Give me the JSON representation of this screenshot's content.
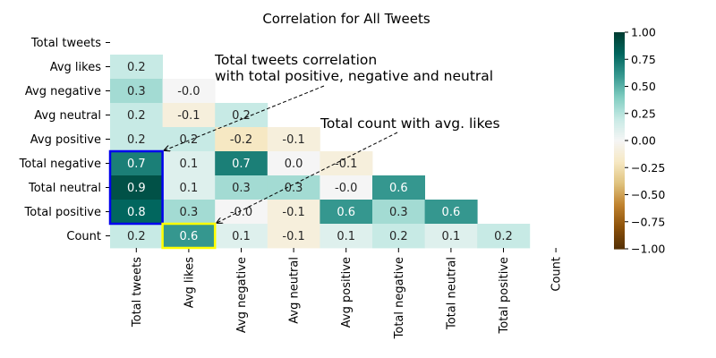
{
  "chart_data": {
    "type": "heatmap",
    "title": "Correlation for All Tweets",
    "labels": [
      "Total tweets",
      "Avg likes",
      "Avg negative",
      "Avg neutral",
      "Avg positive",
      "Total negative",
      "Total neutral",
      "Total positive",
      "Count"
    ],
    "matrix": [
      [],
      [
        0.2
      ],
      [
        0.3,
        -0.0
      ],
      [
        0.2,
        -0.1,
        0.2
      ],
      [
        0.2,
        0.2,
        -0.2,
        -0.1
      ],
      [
        0.7,
        0.1,
        0.7,
        0.0,
        -0.1
      ],
      [
        0.9,
        0.1,
        0.3,
        0.3,
        -0.0,
        0.6
      ],
      [
        0.8,
        0.3,
        -0.0,
        -0.1,
        0.6,
        0.3,
        0.6
      ],
      [
        0.2,
        0.6,
        0.1,
        -0.1,
        0.1,
        0.2,
        0.1,
        0.2
      ]
    ],
    "mask": "upper-triangle-including-diagonal",
    "colormap": "BrBG",
    "vmin": -1.0,
    "vmax": 1.0,
    "colorbar_ticks": [
      "1.00",
      "0.75",
      "0.50",
      "0.25",
      "0.00",
      "−0.25",
      "−0.50",
      "−0.75",
      "−1.00"
    ],
    "highlights": [
      {
        "rows": [
          5,
          7
        ],
        "col": 0,
        "color": "#0000ee"
      },
      {
        "rows": [
          8,
          8
        ],
        "col": 1,
        "color": "#ffff00"
      }
    ],
    "annotations": [
      {
        "lines": [
          "Total tweets correlation",
          "with total positive, negative and neutral"
        ],
        "target_row": 5,
        "target_col": 1
      },
      {
        "lines": [
          "Total count with avg. likes"
        ],
        "target_row": 8,
        "target_col": 2
      }
    ]
  }
}
